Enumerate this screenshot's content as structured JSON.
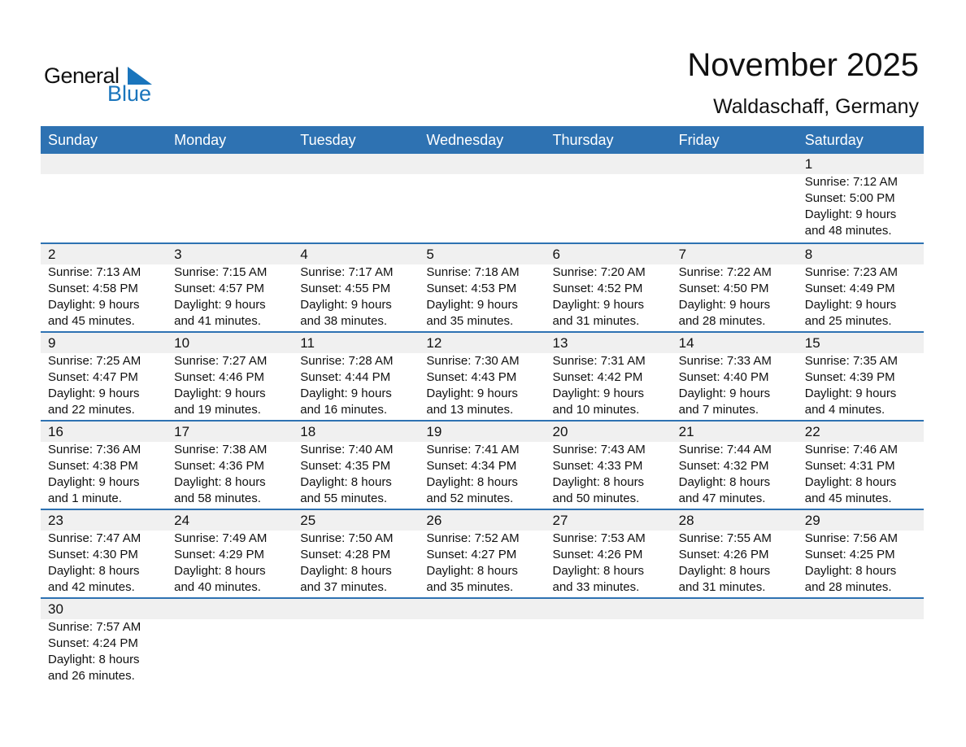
{
  "logo": {
    "line1": "General",
    "line2": "Blue",
    "accent": "#1a75bc"
  },
  "title": "November 2025",
  "location": "Waldaschaff, Germany",
  "header_color": "#2e72b2",
  "weekdays": [
    "Sunday",
    "Monday",
    "Tuesday",
    "Wednesday",
    "Thursday",
    "Friday",
    "Saturday"
  ],
  "weeks": [
    [
      null,
      null,
      null,
      null,
      null,
      null,
      {
        "day": "1",
        "sunrise": "Sunrise: 7:12 AM",
        "sunset": "Sunset: 5:00 PM",
        "daylight": "Daylight: 9 hours",
        "minutes": "and 48 minutes."
      }
    ],
    [
      {
        "day": "2",
        "sunrise": "Sunrise: 7:13 AM",
        "sunset": "Sunset: 4:58 PM",
        "daylight": "Daylight: 9 hours",
        "minutes": "and 45 minutes."
      },
      {
        "day": "3",
        "sunrise": "Sunrise: 7:15 AM",
        "sunset": "Sunset: 4:57 PM",
        "daylight": "Daylight: 9 hours",
        "minutes": "and 41 minutes."
      },
      {
        "day": "4",
        "sunrise": "Sunrise: 7:17 AM",
        "sunset": "Sunset: 4:55 PM",
        "daylight": "Daylight: 9 hours",
        "minutes": "and 38 minutes."
      },
      {
        "day": "5",
        "sunrise": "Sunrise: 7:18 AM",
        "sunset": "Sunset: 4:53 PM",
        "daylight": "Daylight: 9 hours",
        "minutes": "and 35 minutes."
      },
      {
        "day": "6",
        "sunrise": "Sunrise: 7:20 AM",
        "sunset": "Sunset: 4:52 PM",
        "daylight": "Daylight: 9 hours",
        "minutes": "and 31 minutes."
      },
      {
        "day": "7",
        "sunrise": "Sunrise: 7:22 AM",
        "sunset": "Sunset: 4:50 PM",
        "daylight": "Daylight: 9 hours",
        "minutes": "and 28 minutes."
      },
      {
        "day": "8",
        "sunrise": "Sunrise: 7:23 AM",
        "sunset": "Sunset: 4:49 PM",
        "daylight": "Daylight: 9 hours",
        "minutes": "and 25 minutes."
      }
    ],
    [
      {
        "day": "9",
        "sunrise": "Sunrise: 7:25 AM",
        "sunset": "Sunset: 4:47 PM",
        "daylight": "Daylight: 9 hours",
        "minutes": "and 22 minutes."
      },
      {
        "day": "10",
        "sunrise": "Sunrise: 7:27 AM",
        "sunset": "Sunset: 4:46 PM",
        "daylight": "Daylight: 9 hours",
        "minutes": "and 19 minutes."
      },
      {
        "day": "11",
        "sunrise": "Sunrise: 7:28 AM",
        "sunset": "Sunset: 4:44 PM",
        "daylight": "Daylight: 9 hours",
        "minutes": "and 16 minutes."
      },
      {
        "day": "12",
        "sunrise": "Sunrise: 7:30 AM",
        "sunset": "Sunset: 4:43 PM",
        "daylight": "Daylight: 9 hours",
        "minutes": "and 13 minutes."
      },
      {
        "day": "13",
        "sunrise": "Sunrise: 7:31 AM",
        "sunset": "Sunset: 4:42 PM",
        "daylight": "Daylight: 9 hours",
        "minutes": "and 10 minutes."
      },
      {
        "day": "14",
        "sunrise": "Sunrise: 7:33 AM",
        "sunset": "Sunset: 4:40 PM",
        "daylight": "Daylight: 9 hours",
        "minutes": "and 7 minutes."
      },
      {
        "day": "15",
        "sunrise": "Sunrise: 7:35 AM",
        "sunset": "Sunset: 4:39 PM",
        "daylight": "Daylight: 9 hours",
        "minutes": "and 4 minutes."
      }
    ],
    [
      {
        "day": "16",
        "sunrise": "Sunrise: 7:36 AM",
        "sunset": "Sunset: 4:38 PM",
        "daylight": "Daylight: 9 hours",
        "minutes": "and 1 minute."
      },
      {
        "day": "17",
        "sunrise": "Sunrise: 7:38 AM",
        "sunset": "Sunset: 4:36 PM",
        "daylight": "Daylight: 8 hours",
        "minutes": "and 58 minutes."
      },
      {
        "day": "18",
        "sunrise": "Sunrise: 7:40 AM",
        "sunset": "Sunset: 4:35 PM",
        "daylight": "Daylight: 8 hours",
        "minutes": "and 55 minutes."
      },
      {
        "day": "19",
        "sunrise": "Sunrise: 7:41 AM",
        "sunset": "Sunset: 4:34 PM",
        "daylight": "Daylight: 8 hours",
        "minutes": "and 52 minutes."
      },
      {
        "day": "20",
        "sunrise": "Sunrise: 7:43 AM",
        "sunset": "Sunset: 4:33 PM",
        "daylight": "Daylight: 8 hours",
        "minutes": "and 50 minutes."
      },
      {
        "day": "21",
        "sunrise": "Sunrise: 7:44 AM",
        "sunset": "Sunset: 4:32 PM",
        "daylight": "Daylight: 8 hours",
        "minutes": "and 47 minutes."
      },
      {
        "day": "22",
        "sunrise": "Sunrise: 7:46 AM",
        "sunset": "Sunset: 4:31 PM",
        "daylight": "Daylight: 8 hours",
        "minutes": "and 45 minutes."
      }
    ],
    [
      {
        "day": "23",
        "sunrise": "Sunrise: 7:47 AM",
        "sunset": "Sunset: 4:30 PM",
        "daylight": "Daylight: 8 hours",
        "minutes": "and 42 minutes."
      },
      {
        "day": "24",
        "sunrise": "Sunrise: 7:49 AM",
        "sunset": "Sunset: 4:29 PM",
        "daylight": "Daylight: 8 hours",
        "minutes": "and 40 minutes."
      },
      {
        "day": "25",
        "sunrise": "Sunrise: 7:50 AM",
        "sunset": "Sunset: 4:28 PM",
        "daylight": "Daylight: 8 hours",
        "minutes": "and 37 minutes."
      },
      {
        "day": "26",
        "sunrise": "Sunrise: 7:52 AM",
        "sunset": "Sunset: 4:27 PM",
        "daylight": "Daylight: 8 hours",
        "minutes": "and 35 minutes."
      },
      {
        "day": "27",
        "sunrise": "Sunrise: 7:53 AM",
        "sunset": "Sunset: 4:26 PM",
        "daylight": "Daylight: 8 hours",
        "minutes": "and 33 minutes."
      },
      {
        "day": "28",
        "sunrise": "Sunrise: 7:55 AM",
        "sunset": "Sunset: 4:26 PM",
        "daylight": "Daylight: 8 hours",
        "minutes": "and 31 minutes."
      },
      {
        "day": "29",
        "sunrise": "Sunrise: 7:56 AM",
        "sunset": "Sunset: 4:25 PM",
        "daylight": "Daylight: 8 hours",
        "minutes": "and 28 minutes."
      }
    ],
    [
      {
        "day": "30",
        "sunrise": "Sunrise: 7:57 AM",
        "sunset": "Sunset: 4:24 PM",
        "daylight": "Daylight: 8 hours",
        "minutes": "and 26 minutes."
      },
      null,
      null,
      null,
      null,
      null,
      null
    ]
  ]
}
